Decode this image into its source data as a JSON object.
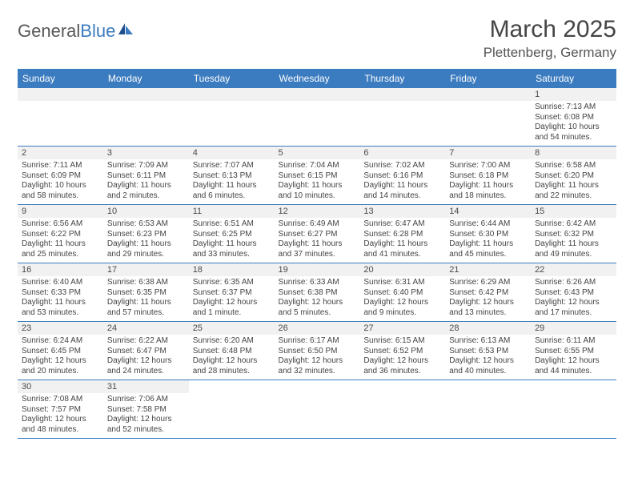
{
  "brand": {
    "general": "General",
    "blue": "Blue"
  },
  "title": "March 2025",
  "location": "Plettenberg, Germany",
  "colors": {
    "header_bg": "#3b7bbf",
    "header_fg": "#ffffff",
    "daynum_bg": "#f1f1f1",
    "row_border": "#3b7bbf",
    "text": "#444444",
    "title_color": "#454545"
  },
  "weekdays": [
    "Sunday",
    "Monday",
    "Tuesday",
    "Wednesday",
    "Thursday",
    "Friday",
    "Saturday"
  ],
  "weeks": [
    [
      null,
      null,
      null,
      null,
      null,
      null,
      {
        "n": "1",
        "sr": "7:13 AM",
        "ss": "6:08 PM",
        "dl": "10 hours and 54 minutes."
      }
    ],
    [
      {
        "n": "2",
        "sr": "7:11 AM",
        "ss": "6:09 PM",
        "dl": "10 hours and 58 minutes."
      },
      {
        "n": "3",
        "sr": "7:09 AM",
        "ss": "6:11 PM",
        "dl": "11 hours and 2 minutes."
      },
      {
        "n": "4",
        "sr": "7:07 AM",
        "ss": "6:13 PM",
        "dl": "11 hours and 6 minutes."
      },
      {
        "n": "5",
        "sr": "7:04 AM",
        "ss": "6:15 PM",
        "dl": "11 hours and 10 minutes."
      },
      {
        "n": "6",
        "sr": "7:02 AM",
        "ss": "6:16 PM",
        "dl": "11 hours and 14 minutes."
      },
      {
        "n": "7",
        "sr": "7:00 AM",
        "ss": "6:18 PM",
        "dl": "11 hours and 18 minutes."
      },
      {
        "n": "8",
        "sr": "6:58 AM",
        "ss": "6:20 PM",
        "dl": "11 hours and 22 minutes."
      }
    ],
    [
      {
        "n": "9",
        "sr": "6:56 AM",
        "ss": "6:22 PM",
        "dl": "11 hours and 25 minutes."
      },
      {
        "n": "10",
        "sr": "6:53 AM",
        "ss": "6:23 PM",
        "dl": "11 hours and 29 minutes."
      },
      {
        "n": "11",
        "sr": "6:51 AM",
        "ss": "6:25 PM",
        "dl": "11 hours and 33 minutes."
      },
      {
        "n": "12",
        "sr": "6:49 AM",
        "ss": "6:27 PM",
        "dl": "11 hours and 37 minutes."
      },
      {
        "n": "13",
        "sr": "6:47 AM",
        "ss": "6:28 PM",
        "dl": "11 hours and 41 minutes."
      },
      {
        "n": "14",
        "sr": "6:44 AM",
        "ss": "6:30 PM",
        "dl": "11 hours and 45 minutes."
      },
      {
        "n": "15",
        "sr": "6:42 AM",
        "ss": "6:32 PM",
        "dl": "11 hours and 49 minutes."
      }
    ],
    [
      {
        "n": "16",
        "sr": "6:40 AM",
        "ss": "6:33 PM",
        "dl": "11 hours and 53 minutes."
      },
      {
        "n": "17",
        "sr": "6:38 AM",
        "ss": "6:35 PM",
        "dl": "11 hours and 57 minutes."
      },
      {
        "n": "18",
        "sr": "6:35 AM",
        "ss": "6:37 PM",
        "dl": "12 hours and 1 minute."
      },
      {
        "n": "19",
        "sr": "6:33 AM",
        "ss": "6:38 PM",
        "dl": "12 hours and 5 minutes."
      },
      {
        "n": "20",
        "sr": "6:31 AM",
        "ss": "6:40 PM",
        "dl": "12 hours and 9 minutes."
      },
      {
        "n": "21",
        "sr": "6:29 AM",
        "ss": "6:42 PM",
        "dl": "12 hours and 13 minutes."
      },
      {
        "n": "22",
        "sr": "6:26 AM",
        "ss": "6:43 PM",
        "dl": "12 hours and 17 minutes."
      }
    ],
    [
      {
        "n": "23",
        "sr": "6:24 AM",
        "ss": "6:45 PM",
        "dl": "12 hours and 20 minutes."
      },
      {
        "n": "24",
        "sr": "6:22 AM",
        "ss": "6:47 PM",
        "dl": "12 hours and 24 minutes."
      },
      {
        "n": "25",
        "sr": "6:20 AM",
        "ss": "6:48 PM",
        "dl": "12 hours and 28 minutes."
      },
      {
        "n": "26",
        "sr": "6:17 AM",
        "ss": "6:50 PM",
        "dl": "12 hours and 32 minutes."
      },
      {
        "n": "27",
        "sr": "6:15 AM",
        "ss": "6:52 PM",
        "dl": "12 hours and 36 minutes."
      },
      {
        "n": "28",
        "sr": "6:13 AM",
        "ss": "6:53 PM",
        "dl": "12 hours and 40 minutes."
      },
      {
        "n": "29",
        "sr": "6:11 AM",
        "ss": "6:55 PM",
        "dl": "12 hours and 44 minutes."
      }
    ],
    [
      {
        "n": "30",
        "sr": "7:08 AM",
        "ss": "7:57 PM",
        "dl": "12 hours and 48 minutes."
      },
      {
        "n": "31",
        "sr": "7:06 AM",
        "ss": "7:58 PM",
        "dl": "12 hours and 52 minutes."
      },
      null,
      null,
      null,
      null,
      null
    ]
  ],
  "labels": {
    "sunrise": "Sunrise: ",
    "sunset": "Sunset: ",
    "daylight": "Daylight: "
  }
}
